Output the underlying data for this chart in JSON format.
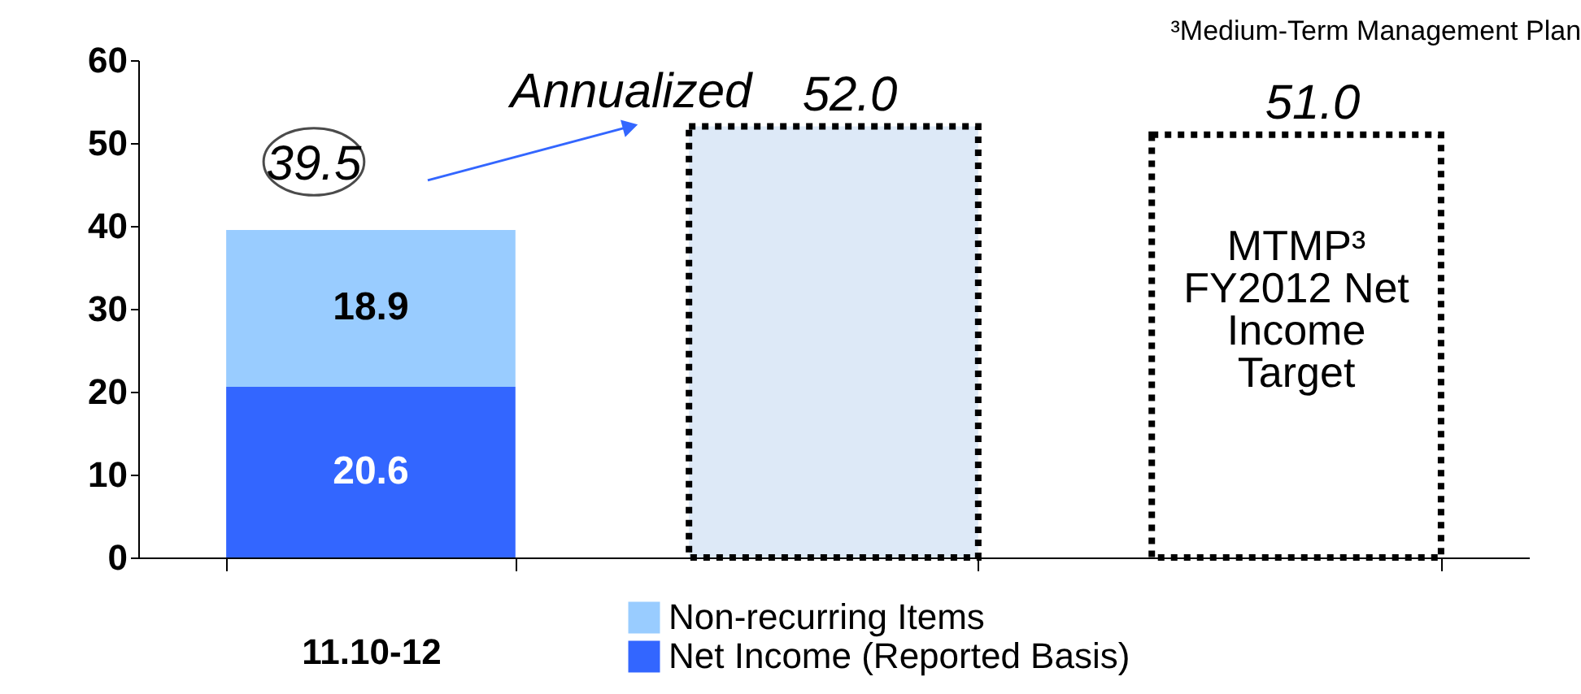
{
  "chart_data": {
    "type": "bar",
    "stacked": true,
    "categories": [
      "11.10-12",
      null,
      null
    ],
    "series": [
      {
        "name": "Net Income (Reported Basis)",
        "color": "#3366ff",
        "values": [
          20.6,
          null,
          null
        ],
        "value_labels": [
          "20.6",
          null,
          null
        ]
      },
      {
        "name": "Non-recurring Items",
        "color": "#99ccff",
        "values": [
          18.9,
          null,
          null
        ],
        "value_labels": [
          "18.9",
          null,
          null
        ]
      },
      {
        "color": "#dde9f7",
        "line_style": "dotted",
        "values": [
          null,
          52.0,
          null
        ],
        "value_labels": [
          null,
          "52.0",
          null
        ]
      },
      {
        "color": "#ffffff",
        "line_style": "dotted",
        "values": [
          null,
          null,
          51.0
        ],
        "value_labels": [
          null,
          null,
          "51.0"
        ]
      }
    ],
    "totals": [
      "39.5",
      null,
      null
    ],
    "annotations": [
      "Annualized",
      "MTMP³ FY2012 Net Income Target",
      "³Medium-Term Management Plan"
    ],
    "ylim": [
      0,
      60
    ],
    "yticks": [
      0,
      10,
      20,
      30,
      40,
      50,
      60
    ],
    "grid": false,
    "legend": "bottom"
  }
}
